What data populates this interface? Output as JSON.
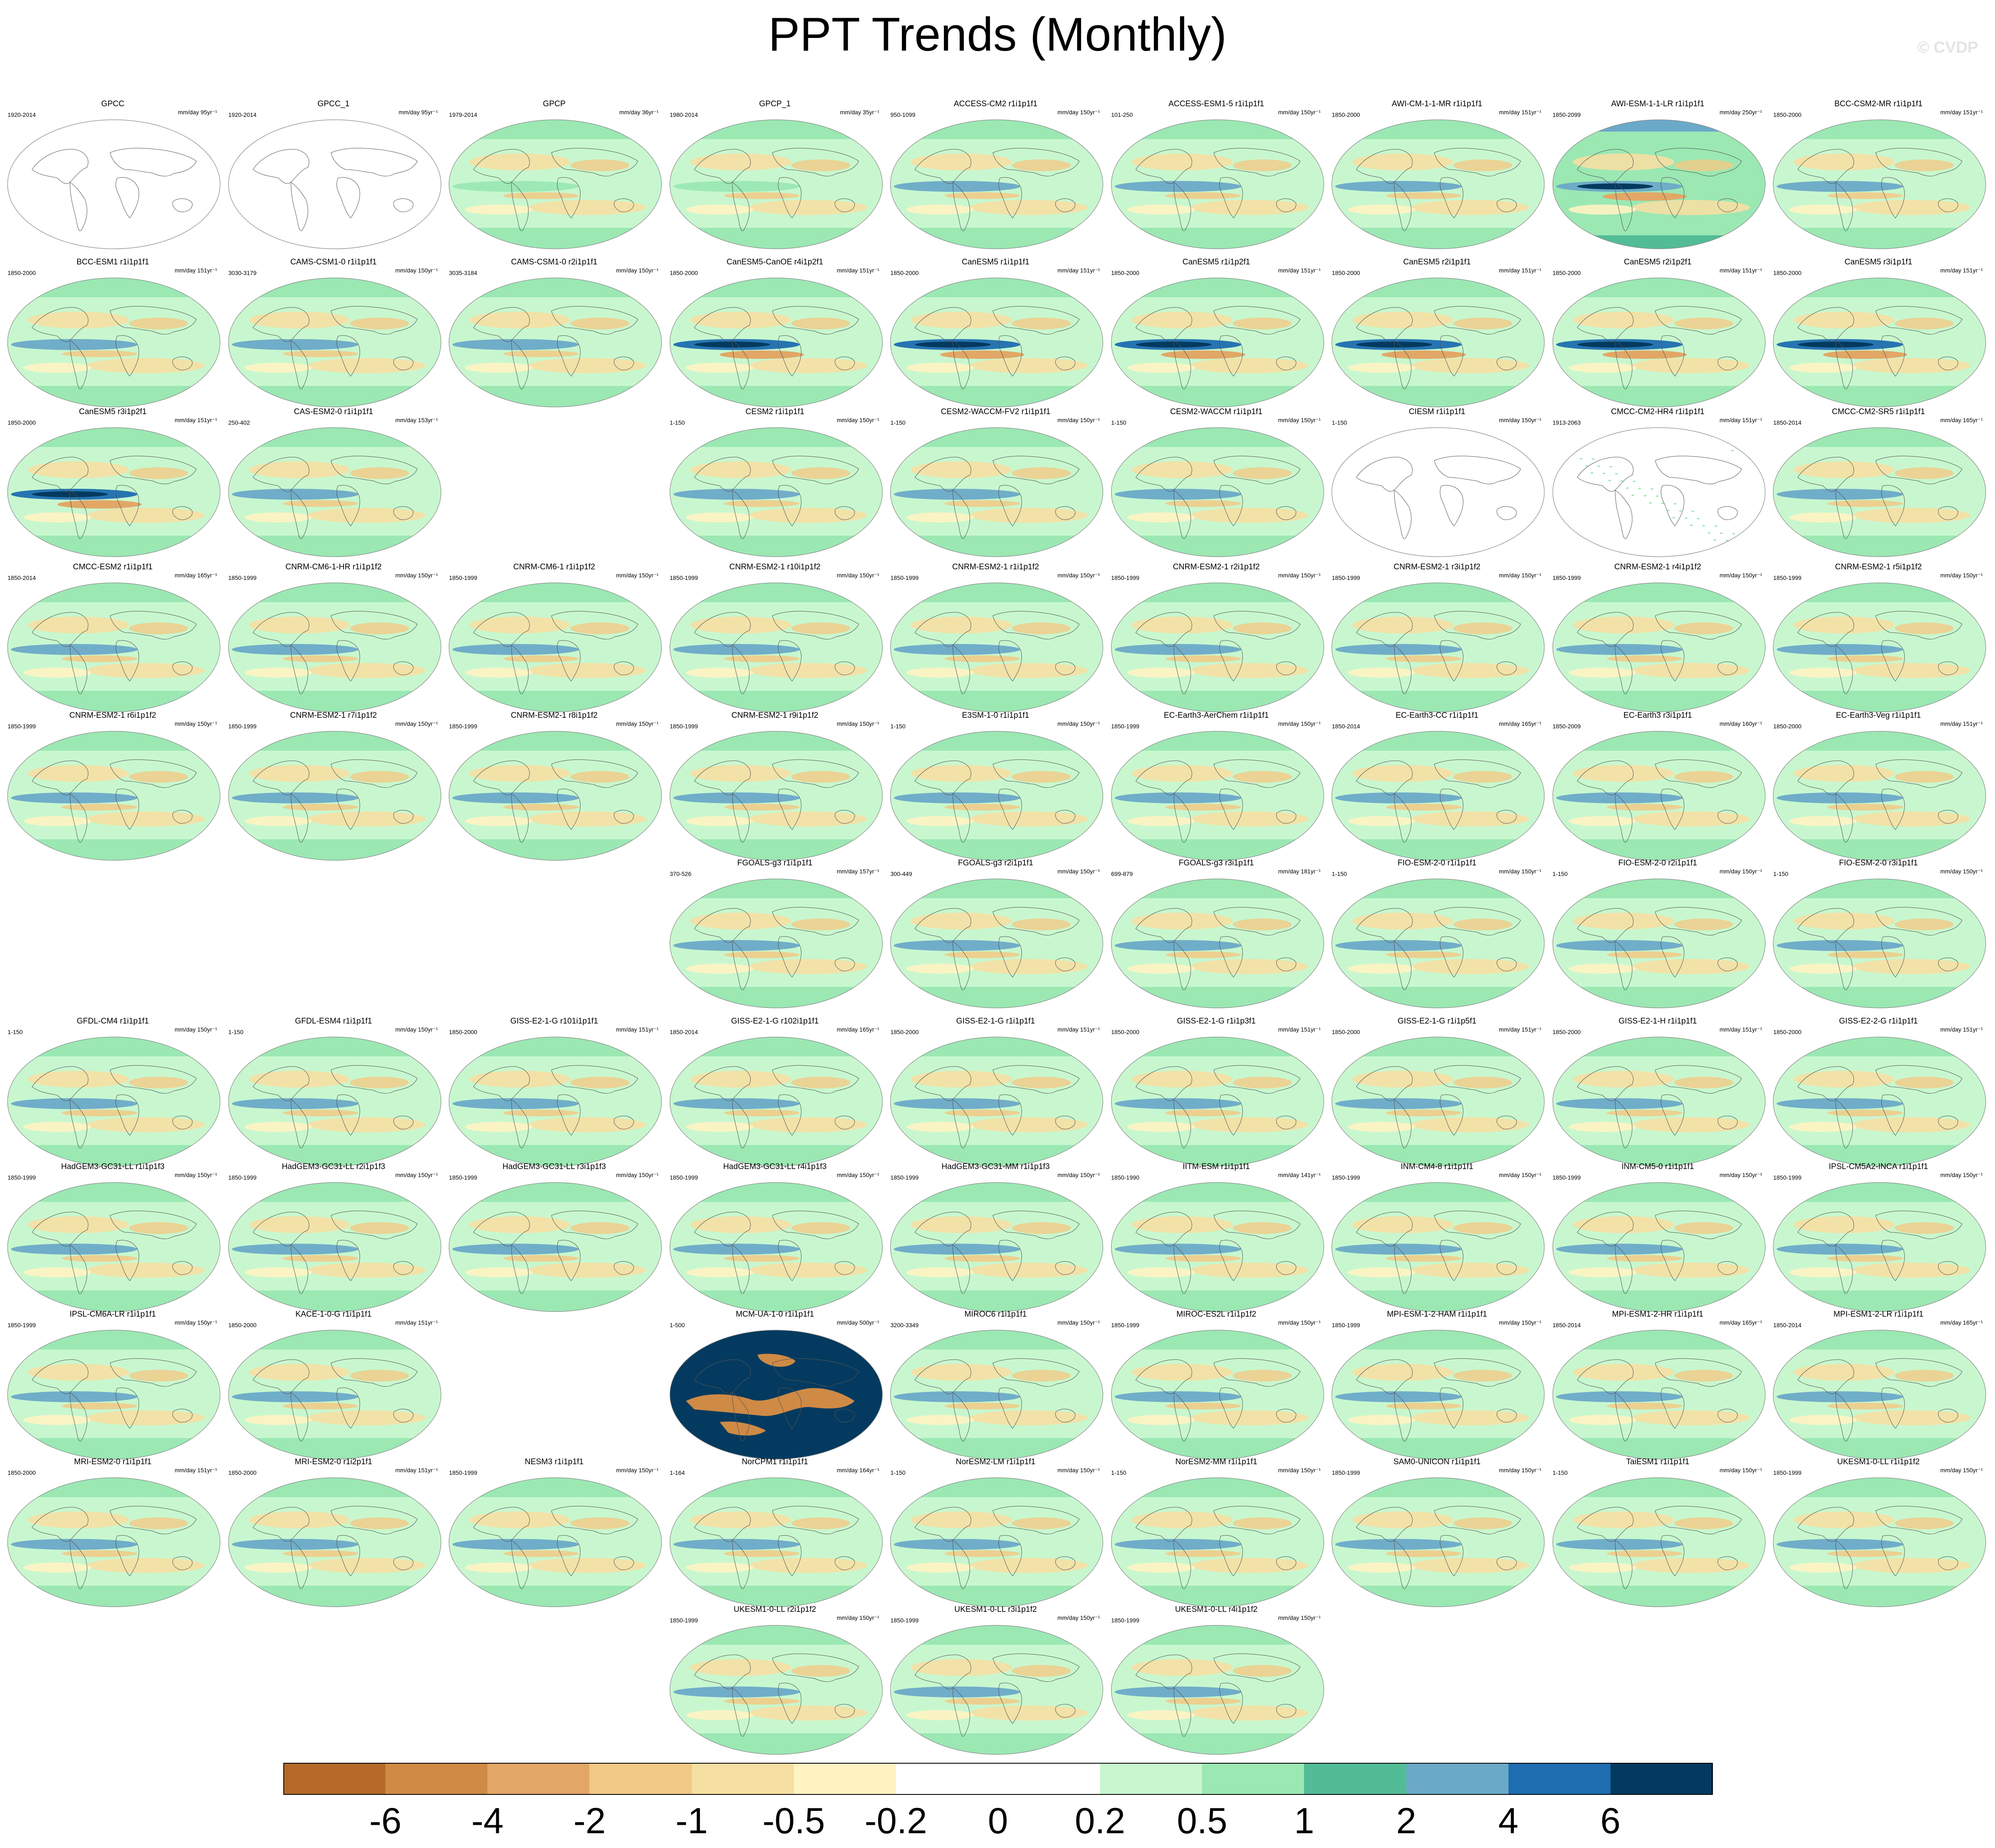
{
  "title": "PPT Trends (Monthly)",
  "watermark": "© CVDP",
  "chart_data": {
    "type": "heatmap",
    "title": "PPT Trends (Monthly)",
    "units": "mm/day",
    "colorbar": {
      "levels": [
        "-6",
        "-4",
        "-2",
        "-1",
        "-0.5",
        "-0.2",
        "0",
        "0.2",
        "0.5",
        "1",
        "2",
        "4",
        "6"
      ],
      "colors": [
        "#b56a29",
        "#cf8a45",
        "#e2a766",
        "#f2c985",
        "#f6dfa3",
        "#fff3c2",
        "#ffffff",
        "#ffffff",
        "#c8f7cf",
        "#9be8b3",
        "#52bc96",
        "#6ba9c8",
        "#1d6db0",
        "#043a5f"
      ]
    },
    "panels": [
      {
        "name": "GPCC",
        "years": "1920-2014",
        "units": "mm/day 95yr⁻¹",
        "row": 0,
        "col": 0,
        "style": "blank"
      },
      {
        "name": "GPCC_1",
        "years": "1920-2014",
        "units": "mm/day 95yr⁻¹",
        "row": 0,
        "col": 1,
        "style": "blank"
      },
      {
        "name": "GPCP",
        "years": "1979-2014",
        "units": "mm/day 36yr⁻¹",
        "row": 0,
        "col": 2,
        "style": "obs"
      },
      {
        "name": "GPCP_1",
        "years": "1980-2014",
        "units": "mm/day 35yr⁻¹",
        "row": 0,
        "col": 3,
        "style": "obs"
      },
      {
        "name": "ACCESS-CM2 r1i1p1f1",
        "years": "950-1099",
        "units": "mm/day 150yr⁻¹",
        "row": 0,
        "col": 4,
        "style": "model"
      },
      {
        "name": "ACCESS-ESM1-5 r1i1p1f1",
        "years": "101-250",
        "units": "mm/day 150yr⁻¹",
        "row": 0,
        "col": 5,
        "style": "model"
      },
      {
        "name": "AWI-CM-1-1-MR r1i1p1f1",
        "years": "1850-2000",
        "units": "mm/day 151yr⁻¹",
        "row": 0,
        "col": 6,
        "style": "model"
      },
      {
        "name": "AWI-ESM-1-1-LR r1i1p1f1",
        "years": "1850-2099",
        "units": "mm/day 250yr⁻¹",
        "row": 0,
        "col": 7,
        "style": "strong"
      },
      {
        "name": "BCC-CSM2-MR r1i1p1f1",
        "years": "1850-2000",
        "units": "mm/day 151yr⁻¹",
        "row": 0,
        "col": 8,
        "style": "model"
      },
      {
        "name": "BCC-ESM1 r1i1p1f1",
        "years": "1850-2000",
        "units": "mm/day 151yr⁻¹",
        "row": 1,
        "col": 0,
        "style": "model"
      },
      {
        "name": "CAMS-CSM1-0 r1i1p1f1",
        "years": "3030-3179",
        "units": "mm/day 150yr⁻¹",
        "row": 1,
        "col": 1,
        "style": "model"
      },
      {
        "name": "CAMS-CSM1-0 r2i1p1f1",
        "years": "3035-3184",
        "units": "mm/day 150yr⁻¹",
        "row": 1,
        "col": 2,
        "style": "model"
      },
      {
        "name": "CanESM5-CanOE r4i1p2f1",
        "years": "1850-2000",
        "units": "mm/day 151yr⁻¹",
        "row": 1,
        "col": 3,
        "style": "canesm"
      },
      {
        "name": "CanESM5 r1i1p1f1",
        "years": "1850-2000",
        "units": "mm/day 151yr⁻¹",
        "row": 1,
        "col": 4,
        "style": "canesm"
      },
      {
        "name": "CanESM5 r1i1p2f1",
        "years": "1850-2000",
        "units": "mm/day 151yr⁻¹",
        "row": 1,
        "col": 5,
        "style": "canesm"
      },
      {
        "name": "CanESM5 r2i1p1f1",
        "years": "1850-2000",
        "units": "mm/day 151yr⁻¹",
        "row": 1,
        "col": 6,
        "style": "canesm"
      },
      {
        "name": "CanESM5 r2i1p2f1",
        "years": "1850-2000",
        "units": "mm/day 151yr⁻¹",
        "row": 1,
        "col": 7,
        "style": "canesm"
      },
      {
        "name": "CanESM5 r3i1p1f1",
        "years": "1850-2000",
        "units": "mm/day 151yr⁻¹",
        "row": 1,
        "col": 8,
        "style": "canesm"
      },
      {
        "name": "CanESM5 r3i1p2f1",
        "years": "1850-2000",
        "units": "mm/day 151yr⁻¹",
        "row": 2,
        "col": 0,
        "style": "canesm"
      },
      {
        "name": "CAS-ESM2-0 r1i1p1f1",
        "years": "250-402",
        "units": "mm/day 153yr⁻¹",
        "row": 2,
        "col": 1,
        "style": "model"
      },
      {
        "name": "CESM2 r1i1p1f1",
        "years": "1-150",
        "units": "mm/day 150yr⁻¹",
        "row": 2,
        "col": 3,
        "style": "model"
      },
      {
        "name": "CESM2-WACCM-FV2 r1i1p1f1",
        "years": "1-150",
        "units": "mm/day 150yr⁻¹",
        "row": 2,
        "col": 4,
        "style": "model"
      },
      {
        "name": "CESM2-WACCM r1i1p1f1",
        "years": "1-150",
        "units": "mm/day 150yr⁻¹",
        "row": 2,
        "col": 5,
        "style": "model"
      },
      {
        "name": "CIESM r1i1p1f1",
        "years": "1-150",
        "units": "mm/day 150yr⁻¹",
        "row": 2,
        "col": 6,
        "style": "blank"
      },
      {
        "name": "CMCC-CM2-HR4 r1i1p1f1",
        "years": "1913-2063",
        "units": "mm/day 151yr⁻¹",
        "row": 2,
        "col": 7,
        "style": "sparse"
      },
      {
        "name": "CMCC-CM2-SR5 r1i1p1f1",
        "years": "1850-2014",
        "units": "mm/day 165yr⁻¹",
        "row": 2,
        "col": 8,
        "style": "model"
      },
      {
        "name": "CMCC-ESM2 r1i1p1f1",
        "years": "1850-2014",
        "units": "mm/day 165yr⁻¹",
        "row": 3,
        "col": 0,
        "style": "model"
      },
      {
        "name": "CNRM-CM6-1-HR r1i1p1f2",
        "years": "1850-1999",
        "units": "mm/day 150yr⁻¹",
        "row": 3,
        "col": 1,
        "style": "model"
      },
      {
        "name": "CNRM-CM6-1 r1i1p1f2",
        "years": "1850-1999",
        "units": "mm/day 150yr⁻¹",
        "row": 3,
        "col": 2,
        "style": "model"
      },
      {
        "name": "CNRM-ESM2-1 r10i1p1f2",
        "years": "1850-1999",
        "units": "mm/day 150yr⁻¹",
        "row": 3,
        "col": 3,
        "style": "model"
      },
      {
        "name": "CNRM-ESM2-1 r1i1p1f2",
        "years": "1850-1999",
        "units": "mm/day 150yr⁻¹",
        "row": 3,
        "col": 4,
        "style": "model"
      },
      {
        "name": "CNRM-ESM2-1 r2i1p1f2",
        "years": "1850-1999",
        "units": "mm/day 150yr⁻¹",
        "row": 3,
        "col": 5,
        "style": "model"
      },
      {
        "name": "CNRM-ESM2-1 r3i1p1f2",
        "years": "1850-1999",
        "units": "mm/day 150yr⁻¹",
        "row": 3,
        "col": 6,
        "style": "model"
      },
      {
        "name": "CNRM-ESM2-1 r4i1p1f2",
        "years": "1850-1999",
        "units": "mm/day 150yr⁻¹",
        "row": 3,
        "col": 7,
        "style": "model"
      },
      {
        "name": "CNRM-ESM2-1 r5i1p1f2",
        "years": "1850-1999",
        "units": "mm/day 150yr⁻¹",
        "row": 3,
        "col": 8,
        "style": "model"
      },
      {
        "name": "CNRM-ESM2-1 r6i1p1f2",
        "years": "1850-1999",
        "units": "mm/day 150yr⁻¹",
        "row": 4,
        "col": 0,
        "style": "model"
      },
      {
        "name": "CNRM-ESM2-1 r7i1p1f2",
        "years": "1850-1999",
        "units": "mm/day 150yr⁻¹",
        "row": 4,
        "col": 1,
        "style": "model"
      },
      {
        "name": "CNRM-ESM2-1 r8i1p1f2",
        "years": "1850-1999",
        "units": "mm/day 150yr⁻¹",
        "row": 4,
        "col": 2,
        "style": "model"
      },
      {
        "name": "CNRM-ESM2-1 r9i1p1f2",
        "years": "1850-1999",
        "units": "mm/day 150yr⁻¹",
        "row": 4,
        "col": 3,
        "style": "model"
      },
      {
        "name": "E3SM-1-0 r1i1p1f1",
        "years": "1-150",
        "units": "mm/day 150yr⁻¹",
        "row": 4,
        "col": 4,
        "style": "model"
      },
      {
        "name": "EC-Earth3-AerChem r1i1p1f1",
        "years": "1850-1999",
        "units": "mm/day 150yr⁻¹",
        "row": 4,
        "col": 5,
        "style": "model"
      },
      {
        "name": "EC-Earth3-CC r1i1p1f1",
        "years": "1850-2014",
        "units": "mm/day 165yr⁻¹",
        "row": 4,
        "col": 6,
        "style": "model"
      },
      {
        "name": "EC-Earth3 r3i1p1f1",
        "years": "1850-2009",
        "units": "mm/day 160yr⁻¹",
        "row": 4,
        "col": 7,
        "style": "model"
      },
      {
        "name": "EC-Earth3-Veg r1i1p1f1",
        "years": "1850-2000",
        "units": "mm/day 151yr⁻¹",
        "row": 4,
        "col": 8,
        "style": "model"
      },
      {
        "name": "FGOALS-g3 r1i1p1f1",
        "years": "370-526",
        "units": "mm/day 157yr⁻¹",
        "row": 5,
        "col": 3,
        "style": "model"
      },
      {
        "name": "FGOALS-g3 r2i1p1f1",
        "years": "300-449",
        "units": "mm/day 150yr⁻¹",
        "row": 5,
        "col": 4,
        "style": "model"
      },
      {
        "name": "FGOALS-g3 r3i1p1f1",
        "years": "699-879",
        "units": "mm/day 181yr⁻¹",
        "row": 5,
        "col": 5,
        "style": "model"
      },
      {
        "name": "FIO-ESM-2-0 r1i1p1f1",
        "years": "1-150",
        "units": "mm/day 150yr⁻¹",
        "row": 5,
        "col": 6,
        "style": "model"
      },
      {
        "name": "FIO-ESM-2-0 r2i1p1f1",
        "years": "1-150",
        "units": "mm/day 150yr⁻¹",
        "row": 5,
        "col": 7,
        "style": "model"
      },
      {
        "name": "FIO-ESM-2-0 r3i1p1f1",
        "years": "1-150",
        "units": "mm/day 150yr⁻¹",
        "row": 5,
        "col": 8,
        "style": "model"
      },
      {
        "name": "GFDL-CM4 r1i1p1f1",
        "years": "1-150",
        "units": "mm/day 150yr⁻¹",
        "row": 6,
        "col": 0,
        "style": "model"
      },
      {
        "name": "GFDL-ESM4 r1i1p1f1",
        "years": "1-150",
        "units": "mm/day 150yr⁻¹",
        "row": 6,
        "col": 1,
        "style": "model"
      },
      {
        "name": "GISS-E2-1-G r101i1p1f1",
        "years": "1850-2000",
        "units": "mm/day 151yr⁻¹",
        "row": 6,
        "col": 2,
        "style": "model"
      },
      {
        "name": "GISS-E2-1-G r102i1p1f1",
        "years": "1850-2014",
        "units": "mm/day 165yr⁻¹",
        "row": 6,
        "col": 3,
        "style": "model"
      },
      {
        "name": "GISS-E2-1-G r1i1p1f1",
        "years": "1850-2000",
        "units": "mm/day 151yr⁻¹",
        "row": 6,
        "col": 4,
        "style": "model"
      },
      {
        "name": "GISS-E2-1-G r1i1p3f1",
        "years": "1850-2000",
        "units": "mm/day 151yr⁻¹",
        "row": 6,
        "col": 5,
        "style": "model"
      },
      {
        "name": "GISS-E2-1-G r1i1p5f1",
        "years": "1850-2000",
        "units": "mm/day 151yr⁻¹",
        "row": 6,
        "col": 6,
        "style": "model"
      },
      {
        "name": "GISS-E2-1-H r1i1p1f1",
        "years": "1850-2000",
        "units": "mm/day 151yr⁻¹",
        "row": 6,
        "col": 7,
        "style": "model"
      },
      {
        "name": "GISS-E2-2-G r1i1p1f1",
        "years": "1850-2000",
        "units": "mm/day 151yr⁻¹",
        "row": 6,
        "col": 8,
        "style": "model"
      },
      {
        "name": "HadGEM3-GC31-LL r1i1p1f3",
        "years": "1850-1999",
        "units": "mm/day 150yr⁻¹",
        "row": 7,
        "col": 0,
        "style": "model"
      },
      {
        "name": "HadGEM3-GC31-LL r2i1p1f3",
        "years": "1850-1999",
        "units": "mm/day 150yr⁻¹",
        "row": 7,
        "col": 1,
        "style": "model"
      },
      {
        "name": "HadGEM3-GC31-LL r3i1p1f3",
        "years": "1850-1999",
        "units": "mm/day 150yr⁻¹",
        "row": 7,
        "col": 2,
        "style": "model"
      },
      {
        "name": "HadGEM3-GC31-LL r4i1p1f3",
        "years": "1850-1999",
        "units": "mm/day 150yr⁻¹",
        "row": 7,
        "col": 3,
        "style": "model"
      },
      {
        "name": "HadGEM3-GC31-MM r1i1p1f3",
        "years": "1850-1999",
        "units": "mm/day 150yr⁻¹",
        "row": 7,
        "col": 4,
        "style": "model"
      },
      {
        "name": "IITM-ESM r1i1p1f1",
        "years": "1850-1990",
        "units": "mm/day 141yr⁻¹",
        "row": 7,
        "col": 5,
        "style": "model"
      },
      {
        "name": "INM-CM4-8 r1i1p1f1",
        "years": "1850-1999",
        "units": "mm/day 150yr⁻¹",
        "row": 7,
        "col": 6,
        "style": "model"
      },
      {
        "name": "INM-CM5-0 r1i1p1f1",
        "years": "1850-1999",
        "units": "mm/day 150yr⁻¹",
        "row": 7,
        "col": 7,
        "style": "model"
      },
      {
        "name": "IPSL-CM5A2-INCA r1i1p1f1",
        "years": "1850-1999",
        "units": "mm/day 150yr⁻¹",
        "row": 7,
        "col": 8,
        "style": "model"
      },
      {
        "name": "IPSL-CM6A-LR r1i1p1f1",
        "years": "1850-1999",
        "units": "mm/day 150yr⁻¹",
        "row": 8,
        "col": 0,
        "style": "model"
      },
      {
        "name": "KACE-1-0-G r1i1p1f1",
        "years": "1850-2000",
        "units": "mm/day 151yr⁻¹",
        "row": 8,
        "col": 1,
        "style": "model"
      },
      {
        "name": "MCM-UA-1-0 r1i1p1f1",
        "years": "1-500",
        "units": "mm/day 500yr⁻¹",
        "row": 8,
        "col": 3,
        "style": "mcm"
      },
      {
        "name": "MIROC6 r1i1p1f1",
        "years": "3200-3349",
        "units": "mm/day 150yr⁻¹",
        "row": 8,
        "col": 4,
        "style": "model"
      },
      {
        "name": "MIROC-ES2L r1i1p1f2",
        "years": "1850-1999",
        "units": "mm/day 150yr⁻¹",
        "row": 8,
        "col": 5,
        "style": "model"
      },
      {
        "name": "MPI-ESM-1-2-HAM r1i1p1f1",
        "years": "1850-1999",
        "units": "mm/day 150yr⁻¹",
        "row": 8,
        "col": 6,
        "style": "model"
      },
      {
        "name": "MPI-ESM1-2-HR r1i1p1f1",
        "years": "1850-2014",
        "units": "mm/day 165yr⁻¹",
        "row": 8,
        "col": 7,
        "style": "model"
      },
      {
        "name": "MPI-ESM1-2-LR r1i1p1f1",
        "years": "1850-2014",
        "units": "mm/day 165yr⁻¹",
        "row": 8,
        "col": 8,
        "style": "model"
      },
      {
        "name": "MRI-ESM2-0 r1i1p1f1",
        "years": "1850-2000",
        "units": "mm/day 151yr⁻¹",
        "row": 9,
        "col": 0,
        "style": "model"
      },
      {
        "name": "MRI-ESM2-0 r1i2p1f1",
        "years": "1850-2000",
        "units": "mm/day 151yr⁻¹",
        "row": 9,
        "col": 1,
        "style": "model"
      },
      {
        "name": "NESM3 r1i1p1f1",
        "years": "1850-1999",
        "units": "mm/day 150yr⁻¹",
        "row": 9,
        "col": 2,
        "style": "model"
      },
      {
        "name": "NorCPM1 r1i1p1f1",
        "years": "1-164",
        "units": "mm/day 164yr⁻¹",
        "row": 9,
        "col": 3,
        "style": "model"
      },
      {
        "name": "NorESM2-LM r1i1p1f1",
        "years": "1-150",
        "units": "mm/day 150yr⁻¹",
        "row": 9,
        "col": 4,
        "style": "model"
      },
      {
        "name": "NorESM2-MM r1i1p1f1",
        "years": "1-150",
        "units": "mm/day 150yr⁻¹",
        "row": 9,
        "col": 5,
        "style": "model"
      },
      {
        "name": "SAM0-UNICON r1i1p1f1",
        "years": "1850-1999",
        "units": "mm/day 150yr⁻¹",
        "row": 9,
        "col": 6,
        "style": "model"
      },
      {
        "name": "TaiESM1 r1i1p1f1",
        "years": "1-150",
        "units": "mm/day 150yr⁻¹",
        "row": 9,
        "col": 7,
        "style": "model"
      },
      {
        "name": "UKESM1-0-LL r1i1p1f2",
        "years": "1850-1999",
        "units": "mm/day 150yr⁻¹",
        "row": 9,
        "col": 8,
        "style": "model"
      },
      {
        "name": "UKESM1-0-LL r2i1p1f2",
        "years": "1850-1999",
        "units": "mm/day 150yr⁻¹",
        "row": 10,
        "col": 3,
        "style": "model"
      },
      {
        "name": "UKESM1-0-LL r3i1p1f2",
        "years": "1850-1999",
        "units": "mm/day 150yr⁻¹",
        "row": 10,
        "col": 4,
        "style": "model"
      },
      {
        "name": "UKESM1-0-LL r4i1p1f2",
        "years": "1850-1999",
        "units": "mm/day 150yr⁻¹",
        "row": 10,
        "col": 5,
        "style": "model"
      }
    ]
  }
}
